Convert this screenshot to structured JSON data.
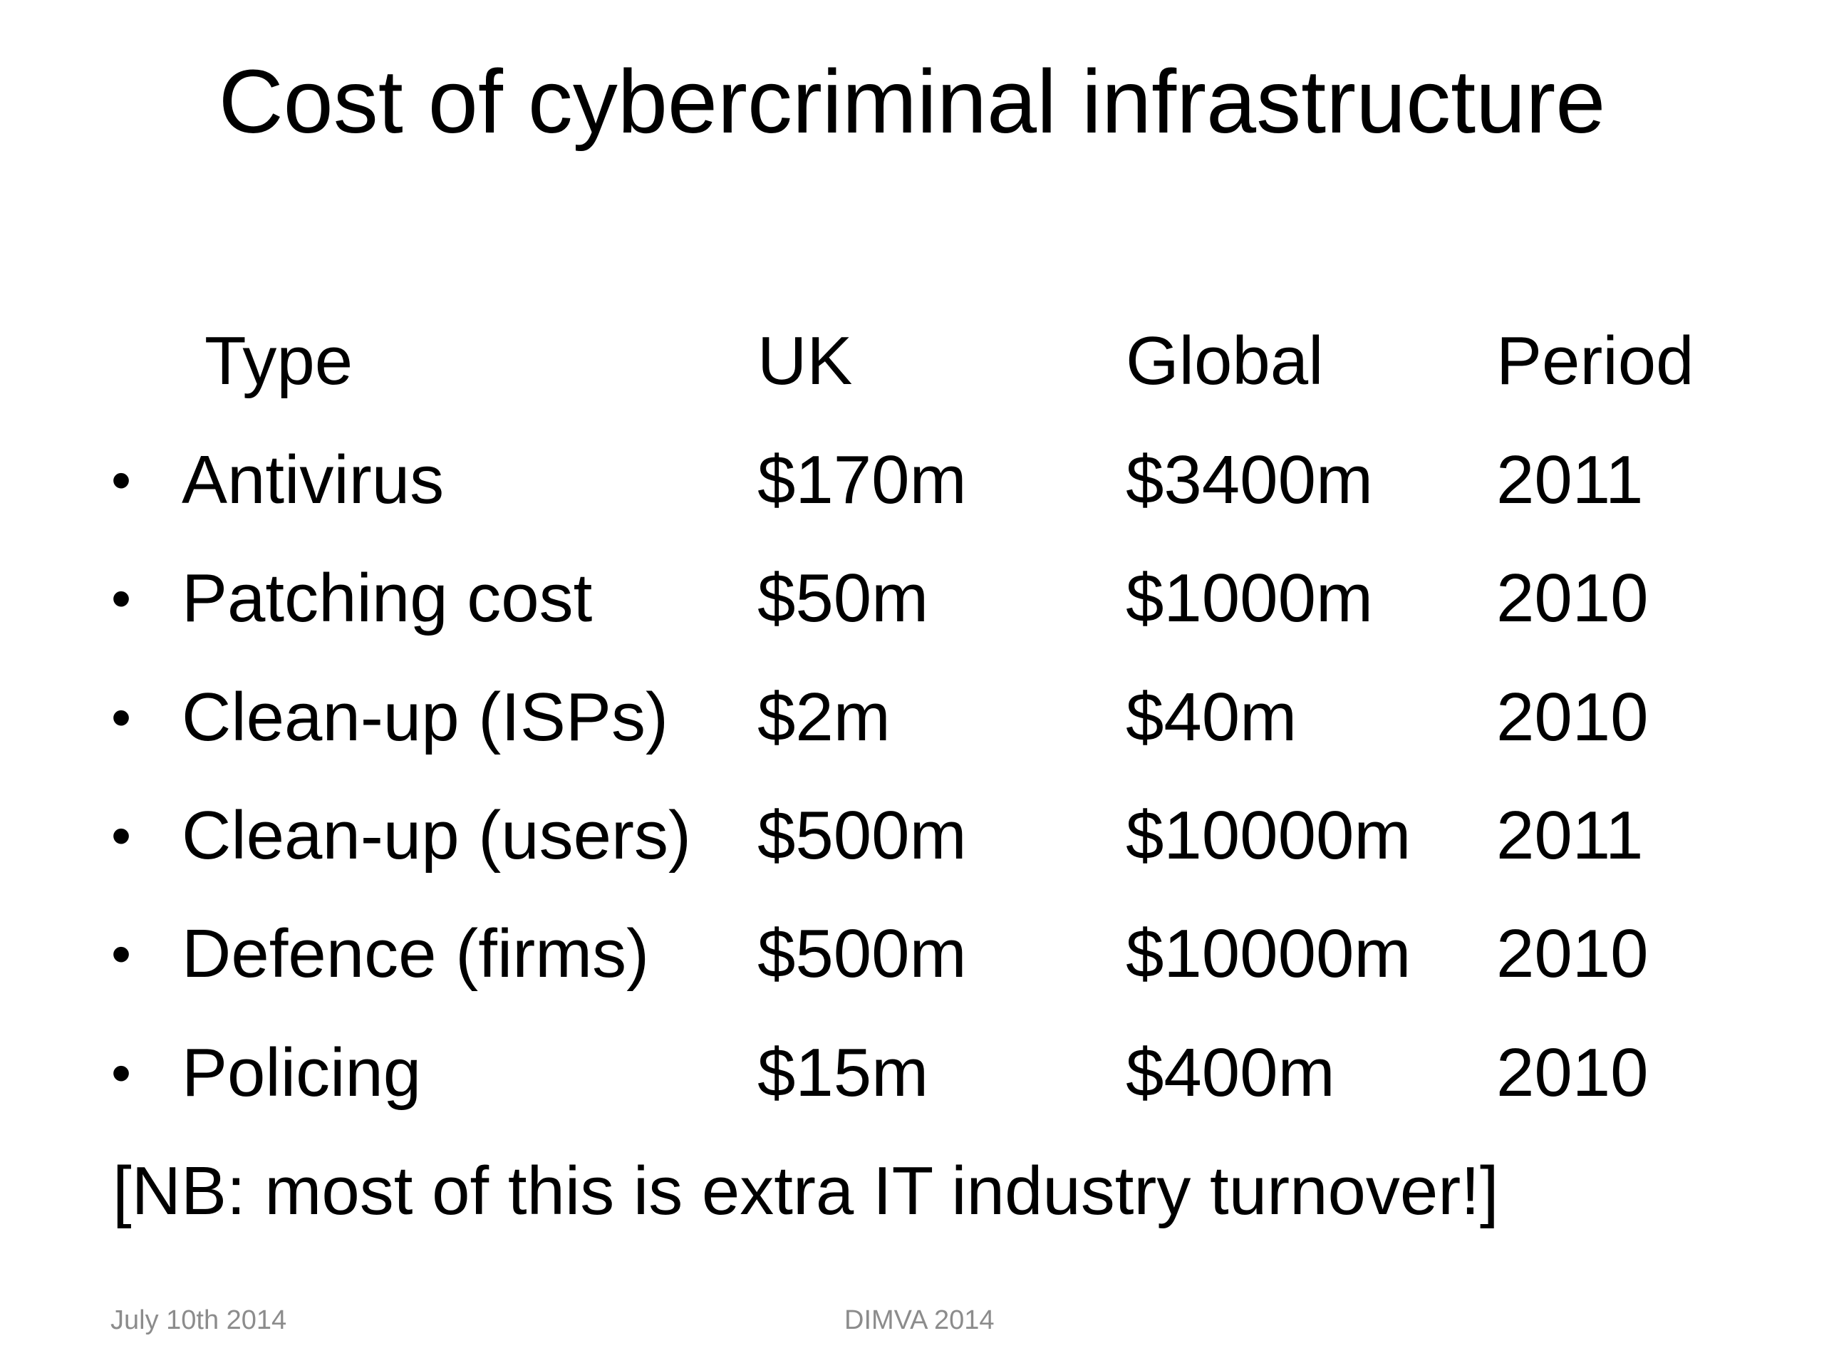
{
  "slide": {
    "title": "Cost of cybercriminal infrastructure",
    "table": {
      "headers": [
        "Type",
        "UK",
        "Global",
        "Period"
      ],
      "rows": [
        [
          "Antivirus",
          "$170m",
          "$3400m",
          "2011"
        ],
        [
          "Patching cost",
          "$50m",
          "$1000m",
          "2010"
        ],
        [
          "Clean-up (ISPs)",
          "$2m",
          "$40m",
          "2010"
        ],
        [
          "Clean-up (users)",
          "$500m",
          "$10000m",
          "2011"
        ],
        [
          "Defence (firms)",
          "$500m",
          "$10000m",
          "2010"
        ],
        [
          "Policing",
          "$15m",
          "$400m",
          "2010"
        ]
      ]
    },
    "note": "[NB: most of this is extra IT industry turnover!]",
    "footer": {
      "date": "July 10th 2014",
      "event": "DIMVA 2014"
    }
  }
}
